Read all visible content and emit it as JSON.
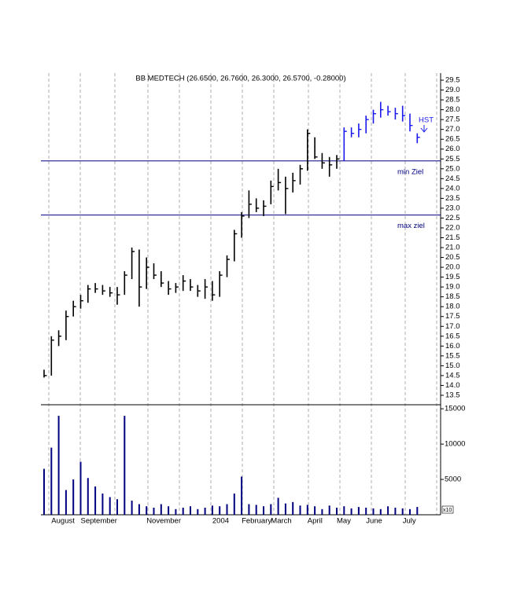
{
  "chart_data": {
    "type": "hlc",
    "title": "BB MEDTECH (26.6500, 26.7600, 26.3000, 26.5700, -0.28000)",
    "categories": [
      null,
      "August",
      null,
      null,
      null,
      "September",
      null,
      null,
      null,
      null,
      null,
      null,
      null,
      null,
      "November",
      null,
      null,
      null,
      null,
      null,
      null,
      null,
      null,
      "2004",
      null,
      null,
      null,
      "February",
      null,
      null,
      null,
      "March",
      null,
      null,
      null,
      null,
      "April",
      null,
      null,
      null,
      "May",
      null,
      null,
      null,
      "June",
      null,
      null,
      null,
      null,
      "July",
      null,
      null
    ],
    "high": [
      14.8,
      16.5,
      16.8,
      17.8,
      18.3,
      18.6,
      19.1,
      19.2,
      19.1,
      19.0,
      19.0,
      19.8,
      21.0,
      20.9,
      20.5,
      20.2,
      19.8,
      19.3,
      19.2,
      19.6,
      19.4,
      19.1,
      19.4,
      19.3,
      19.8,
      20.6,
      21.9,
      22.8,
      23.9,
      23.5,
      23.4,
      24.4,
      25.0,
      24.6,
      24.8,
      25.2,
      27.0,
      26.6,
      25.8,
      25.6,
      25.7,
      27.1,
      27.1,
      27.3,
      27.7,
      28.0,
      28.4,
      28.2,
      28.1,
      28.2,
      27.8,
      26.8
    ],
    "low": [
      14.4,
      14.5,
      16.0,
      16.3,
      17.5,
      17.9,
      18.2,
      18.7,
      18.6,
      18.5,
      18.1,
      18.6,
      19.4,
      18.0,
      18.9,
      19.4,
      19.0,
      18.6,
      18.7,
      18.8,
      18.8,
      18.5,
      18.4,
      18.3,
      18.5,
      19.5,
      20.3,
      21.5,
      22.5,
      22.8,
      22.6,
      23.2,
      23.9,
      22.7,
      23.8,
      24.2,
      24.9,
      25.5,
      25.0,
      24.6,
      25.0,
      25.4,
      26.6,
      26.6,
      26.8,
      27.3,
      27.6,
      27.7,
      27.5,
      27.4,
      26.9,
      26.3
    ],
    "close": [
      14.5,
      16.3,
      16.5,
      17.5,
      18.0,
      18.3,
      18.9,
      18.9,
      18.8,
      18.7,
      18.6,
      19.6,
      20.8,
      19.0,
      20.0,
      19.6,
      19.2,
      18.9,
      19.0,
      19.3,
      19.0,
      18.8,
      19.0,
      18.6,
      19.6,
      20.4,
      21.7,
      22.6,
      23.2,
      23.0,
      23.1,
      24.1,
      24.3,
      24.0,
      24.4,
      25.0,
      26.8,
      25.6,
      25.3,
      25.2,
      25.5,
      26.9,
      26.8,
      27.0,
      27.5,
      27.8,
      28.0,
      27.9,
      27.8,
      27.7,
      27.2,
      26.6
    ],
    "colors": [
      "#000000",
      "#000000",
      "#000000",
      "#000000",
      "#000000",
      "#000000",
      "#000000",
      "#000000",
      "#000000",
      "#000000",
      "#000000",
      "#000000",
      "#000000",
      "#000000",
      "#000000",
      "#000000",
      "#000000",
      "#000000",
      "#000000",
      "#000000",
      "#000000",
      "#000000",
      "#000000",
      "#000000",
      "#000000",
      "#000000",
      "#000000",
      "#000000",
      "#000000",
      "#000000",
      "#000000",
      "#000000",
      "#000000",
      "#000000",
      "#000000",
      "#000000",
      "#000000",
      "#000000",
      "#000000",
      "#000000",
      "#000000",
      "#1a1aee",
      "#1a1aee",
      "#1a1aee",
      "#1a1aee",
      "#1a1aee",
      "#1a1aee",
      "#1a1aee",
      "#1a1aee",
      "#1a1aee",
      "#1a1aee",
      "#1a1aee"
    ],
    "ylim": [
      13.02,
      29.86
    ],
    "yticks": [
      13.5,
      {
        "value": 14,
        "label": "14.0"
      },
      14.5,
      {
        "value": 15,
        "label": "15.0"
      },
      15.5,
      {
        "value": 16,
        "label": "16.0"
      },
      16.5,
      {
        "value": 17,
        "label": "17.0"
      },
      17.5,
      {
        "value": 18,
        "label": "18.0"
      },
      18.5,
      {
        "value": 19,
        "label": "19.0"
      },
      19.5,
      {
        "value": 20,
        "label": "20.0"
      },
      20.5,
      {
        "value": 21,
        "label": "21.0"
      },
      21.5,
      {
        "value": 22,
        "label": "22.0"
      },
      22.5,
      {
        "value": 23,
        "label": "23.0"
      },
      23.5,
      {
        "value": 24,
        "label": "24.0"
      },
      24.5,
      {
        "value": 25,
        "label": "25.0"
      },
      25.5,
      {
        "value": 26,
        "label": "26.0"
      },
      26.5,
      {
        "value": 27,
        "label": "27.0"
      },
      27.5,
      {
        "value": 28,
        "label": "28.0"
      },
      28.5,
      {
        "value": 29,
        "label": "29.0"
      },
      29.5
    ],
    "hlines": [
      {
        "value": 25.4,
        "label": "min Ziel",
        "color": "#000080"
      },
      {
        "value": 22.65,
        "label": "max ziel",
        "color": "#000080"
      }
    ],
    "annotations": [
      {
        "text": "HST"
      }
    ],
    "volume": {
      "color": "#000080",
      "unit_label": "x10",
      "values": [
        6500,
        9500,
        14000,
        3500,
        5000,
        7500,
        5200,
        4000,
        3000,
        2500,
        2200,
        14000,
        2000,
        1500,
        1200,
        1000,
        1500,
        1200,
        800,
        1000,
        1200,
        800,
        1000,
        1300,
        1200,
        1500,
        3000,
        5400,
        1500,
        1400,
        1200,
        1500,
        2400,
        1600,
        1800,
        1300,
        1400,
        1200,
        800,
        1300,
        1000,
        1200,
        900,
        1100,
        1000,
        900,
        800,
        1200,
        1000,
        900,
        800,
        1100
      ],
      "ylim": [
        0,
        15570
      ],
      "yticks": [
        5000,
        10000,
        15000
      ]
    }
  }
}
